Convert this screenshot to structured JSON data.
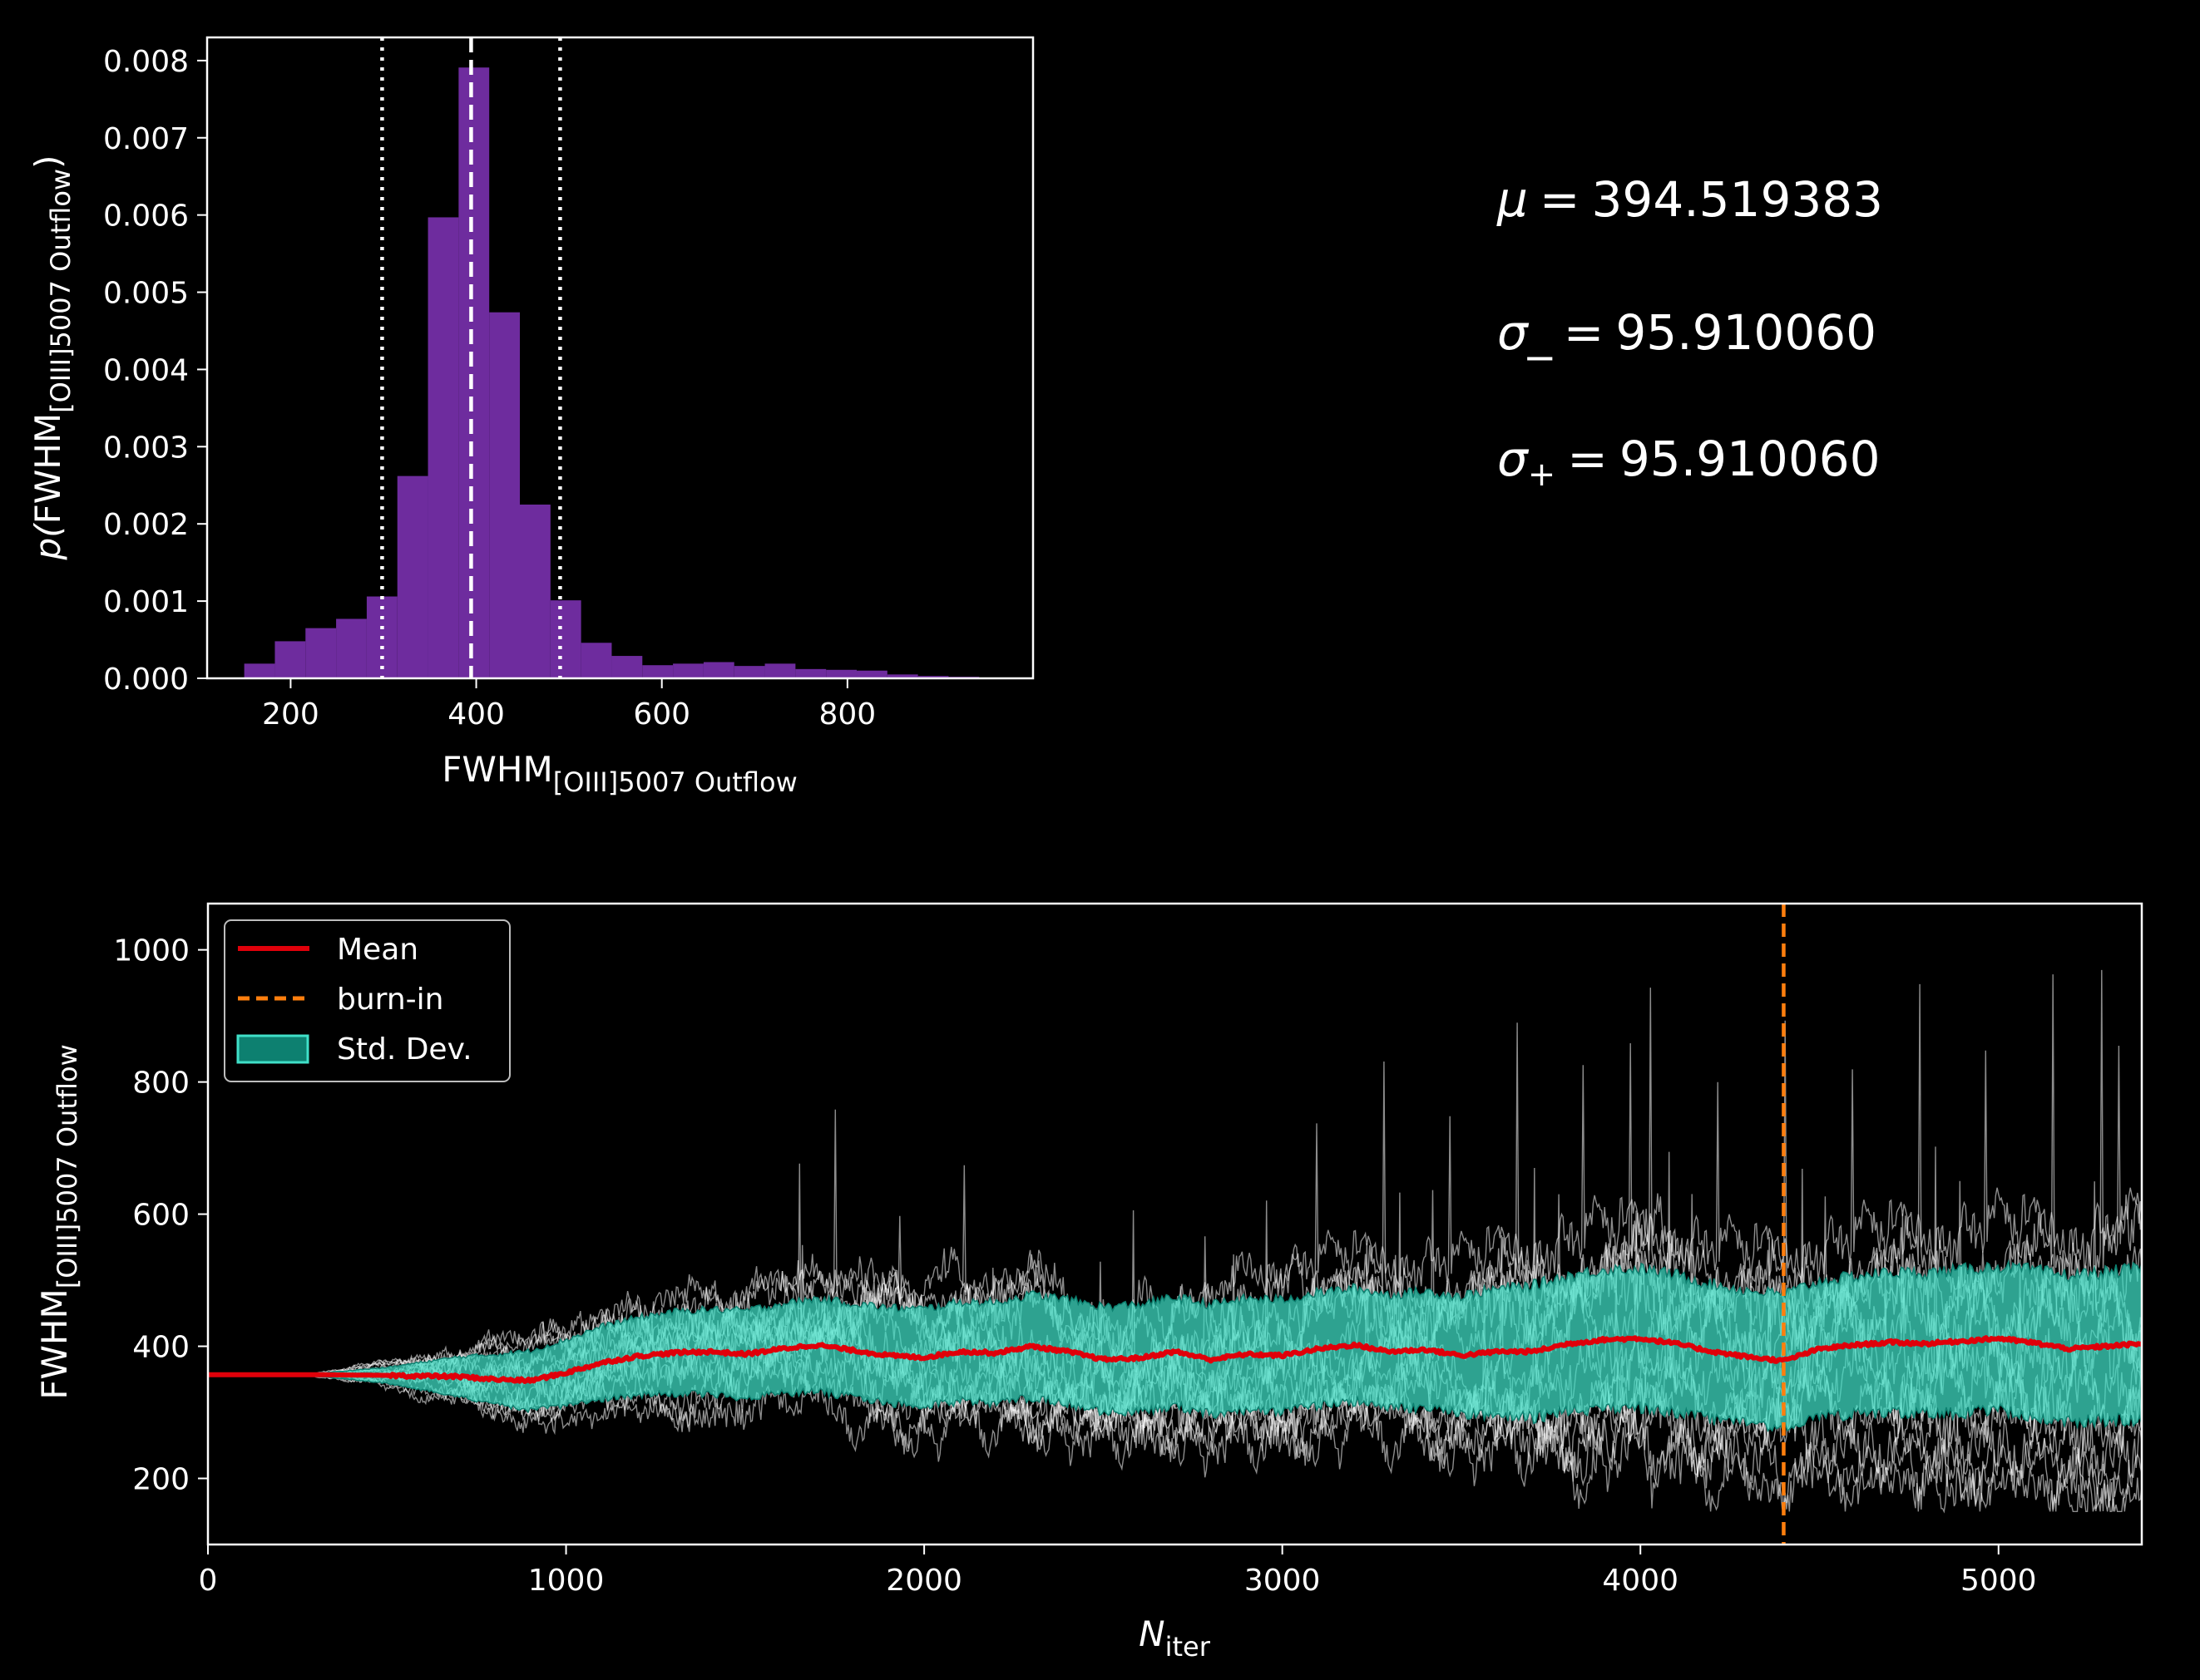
{
  "stats": {
    "mu_symbol": "μ",
    "mu_value": "394.519383",
    "sigma_minus_symbol": "σ_",
    "sigma_minus_value": "95.910060",
    "sigma_plus_symbol": "σ",
    "sigma_plus_sub": "+",
    "sigma_plus_value": "95.910060",
    "equals": "="
  },
  "chart_data": [
    {
      "type": "histogram",
      "xlabel_main": "FWHM",
      "xlabel_sub": "[OIII]5007 Outflow",
      "ylabel_prefix": "p(",
      "ylabel_main": "FWHM",
      "ylabel_sub": "[OIII]5007 Outflow",
      "ylabel_suffix": ")",
      "xlim": [
        110,
        1000
      ],
      "ylim": [
        0,
        0.0083
      ],
      "xticks": [
        "200",
        "400",
        "600",
        "800"
      ],
      "xtick_values": [
        200,
        400,
        600,
        800
      ],
      "yticks": [
        "0.000",
        "0.001",
        "0.002",
        "0.003",
        "0.004",
        "0.005",
        "0.006",
        "0.007",
        "0.008"
      ],
      "ytick_values": [
        0,
        0.001,
        0.002,
        0.003,
        0.004,
        0.005,
        0.006,
        0.007,
        0.008
      ],
      "bin_edges": [
        150,
        183,
        216,
        249,
        282,
        315,
        348,
        381,
        414,
        447,
        480,
        513,
        546,
        579,
        612,
        645,
        678,
        711,
        744,
        777,
        810,
        843,
        876,
        909,
        942
      ],
      "values": [
        0.00019,
        0.00048,
        0.00065,
        0.00077,
        0.00106,
        0.00262,
        0.00597,
        0.00791,
        0.00474,
        0.00225,
        0.00101,
        0.00046,
        0.00029,
        0.00017,
        0.00019,
        0.00021,
        0.00016,
        0.00019,
        0.00012,
        0.00011,
        0.0001,
        5e-05,
        3e-05,
        2e-05
      ],
      "bar_color": "#6e2c9e",
      "vlines": [
        {
          "x": 394.5,
          "style": "dashed",
          "label": "mean"
        },
        {
          "x": 298.6,
          "style": "dotted",
          "label": "mean - sigma"
        },
        {
          "x": 490.4,
          "style": "dotted",
          "label": "mean + sigma"
        }
      ]
    },
    {
      "type": "line",
      "xlabel_main": "N",
      "xlabel_sub": "iter",
      "ylabel_main": "FWHM",
      "ylabel_sub": "[OIII]5007 Outflow",
      "xlim": [
        0,
        5400
      ],
      "ylim": [
        100,
        1070
      ],
      "xticks": [
        "0",
        "1000",
        "2000",
        "3000",
        "4000",
        "5000"
      ],
      "xtick_values": [
        0,
        1000,
        2000,
        3000,
        4000,
        5000
      ],
      "yticks": [
        "200",
        "400",
        "600",
        "800",
        "1000"
      ],
      "ytick_values": [
        200,
        400,
        600,
        800,
        1000
      ],
      "initial_value": 357,
      "mean_series": {
        "x": [
          0,
          300,
          500,
          700,
          800,
          900,
          1000,
          1100,
          1200,
          1300,
          1400,
          1500,
          1600,
          1700,
          1800,
          1900,
          2000,
          2100,
          2200,
          2300,
          2400,
          2500,
          2600,
          2700,
          2800,
          2900,
          3000,
          3100,
          3200,
          3300,
          3400,
          3500,
          3600,
          3700,
          3800,
          3900,
          4000,
          4100,
          4200,
          4300,
          4400,
          4500,
          4600,
          4700,
          4800,
          4900,
          5000,
          5100,
          5200,
          5300,
          5400
        ],
        "y": [
          357,
          357,
          356,
          354,
          350,
          348,
          360,
          375,
          385,
          390,
          392,
          388,
          396,
          402,
          394,
          386,
          383,
          392,
          390,
          400,
          392,
          380,
          382,
          392,
          380,
          388,
          386,
          396,
          402,
          392,
          395,
          386,
          392,
          392,
          404,
          410,
          412,
          404,
          392,
          384,
          378,
          396,
          402,
          406,
          404,
          408,
          412,
          405,
          396,
          400,
          404
        ]
      },
      "std_dev": {
        "x": [
          0,
          300,
          500,
          700,
          900,
          1100,
          1300,
          1500,
          1700,
          1900,
          2100,
          2300,
          2500,
          2700,
          2900,
          3100,
          3300,
          3500,
          3700,
          3900,
          4100,
          4300,
          4500,
          4700,
          4900,
          5100,
          5300,
          5400
        ],
        "sigma": [
          0,
          2,
          12,
          30,
          45,
          55,
          62,
          66,
          70,
          72,
          75,
          78,
          80,
          82,
          84,
          85,
          86,
          90,
          100,
          106,
          104,
          100,
          102,
          106,
          108,
          110,
          112,
          114
        ]
      },
      "walkers_count": 14,
      "walkers_color": "#ffffff",
      "burn_in": 4400,
      "legend": {
        "position": "upper left",
        "entries": [
          {
            "label": "Mean",
            "color": "#e0000a",
            "style": "solid"
          },
          {
            "label": "burn-in",
            "color": "#ff7f0e",
            "style": "dashed"
          },
          {
            "label": "Std. Dev.",
            "color": "#40e0c8",
            "style": "patch"
          }
        ]
      },
      "colors": {
        "mean": "#e0000a",
        "burn_in": "#ff7f0e",
        "std_fill": "#40e0c8",
        "std_edge": "#0d8070"
      }
    }
  ]
}
